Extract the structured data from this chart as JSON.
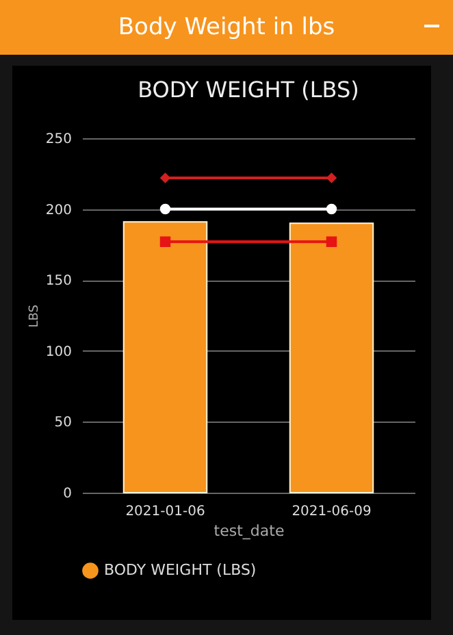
{
  "chart_data": {
    "type": "bar",
    "title": "Body Weight in lbs",
    "subtitle": "BODY WEIGHT (LBS)",
    "xlabel": "test_date",
    "ylabel": "LBS",
    "categories": [
      "2021-01-06",
      "2021-06-09"
    ],
    "series": [
      {
        "name": "BODY WEIGHT (LBS)",
        "color": "#f7941d",
        "values": [
          191,
          190
        ]
      },
      {
        "type": "line",
        "color": "#d41f1f",
        "marker": "diamond",
        "values": [
          222,
          222
        ]
      },
      {
        "type": "line",
        "color": "#ffffff",
        "marker": "circle",
        "values": [
          200,
          200
        ]
      },
      {
        "type": "line",
        "color": "#e61414",
        "marker": "square",
        "values": [
          177,
          177
        ]
      }
    ],
    "ylim": [
      0,
      250
    ],
    "yticks": [
      0,
      50,
      100,
      150,
      200,
      250
    ],
    "grid": "y",
    "legend": "bottom"
  }
}
